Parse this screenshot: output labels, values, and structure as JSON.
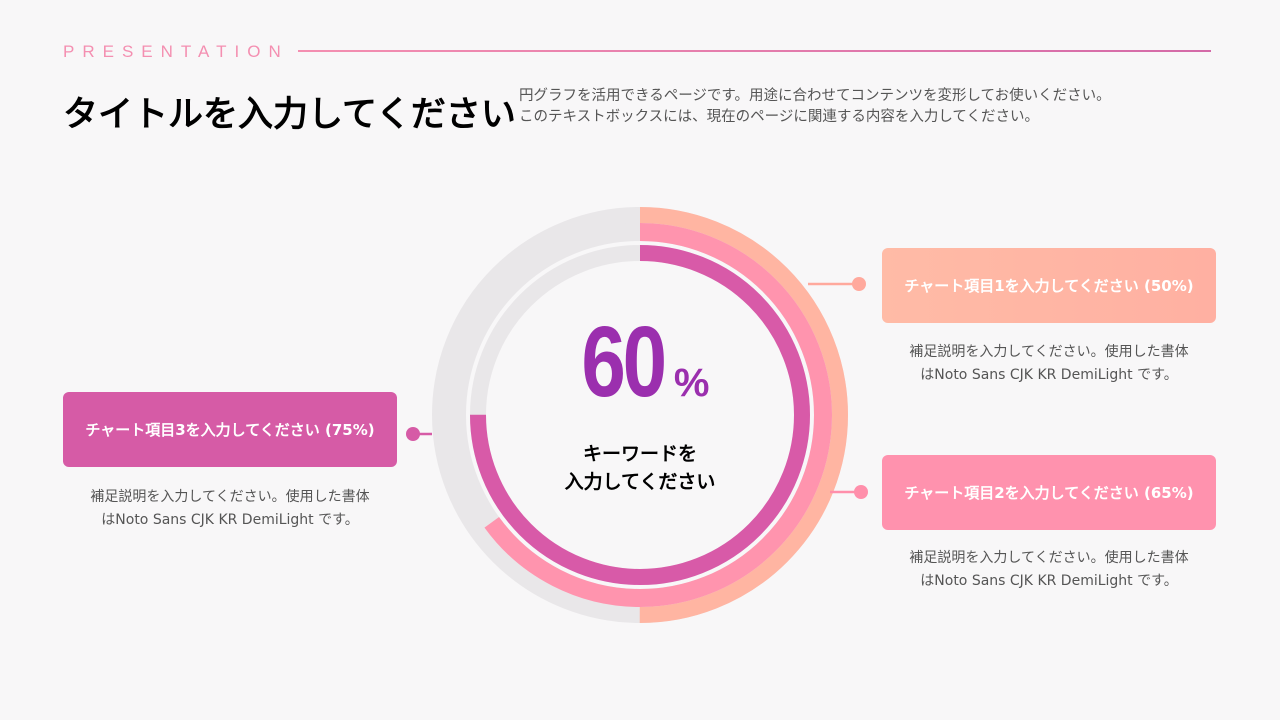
{
  "header": {
    "eyebrow": "PRESENTATION",
    "title": "タイトルを入力してください",
    "subtitle_line1": "円グラフを活用できるページです。用途に合わせてコンテンツを変形してお使いください。",
    "subtitle_line2": "このテキストボックスには、現在のページに関連する内容を入力してください。"
  },
  "center": {
    "value": "60",
    "unit": "%",
    "keyword_line1": "キーワードを",
    "keyword_line2": "入力してください"
  },
  "chart_data": {
    "type": "radial-bar",
    "max": 100,
    "track_color": "#e9e7e9",
    "series": [
      {
        "name": "チャート項目1を入力してください (50%)",
        "value": 50,
        "color": "#ffb5a2",
        "ring": "outer"
      },
      {
        "name": "チャート項目2を入力してください (65%)",
        "value": 65,
        "color": "#ff94ae",
        "ring": "middle"
      },
      {
        "name": "チャート項目3を入力してください (75%)",
        "value": 75,
        "color": "#d85aa8",
        "ring": "inner"
      }
    ]
  },
  "items": [
    {
      "label": "チャート項目1を入力してください (50%)",
      "desc_line1": "補足説明を入力してください。使用した書体",
      "desc_line2": "はNoto Sans CJK KR DemiLight です。",
      "color": "#ffb5a2"
    },
    {
      "label": "チャート項目2を入力してください (65%)",
      "desc_line1": "補足説明を入力してください。使用した書体",
      "desc_line2": "はNoto Sans CJK KR DemiLight です。",
      "color": "#ff94ae"
    },
    {
      "label": "チャート項目3を入力してください (75%)",
      "desc_line1": "補足説明を入力してください。使用した書体",
      "desc_line2": "はNoto Sans CJK KR DemiLight です。",
      "color": "#d85aa8"
    }
  ]
}
